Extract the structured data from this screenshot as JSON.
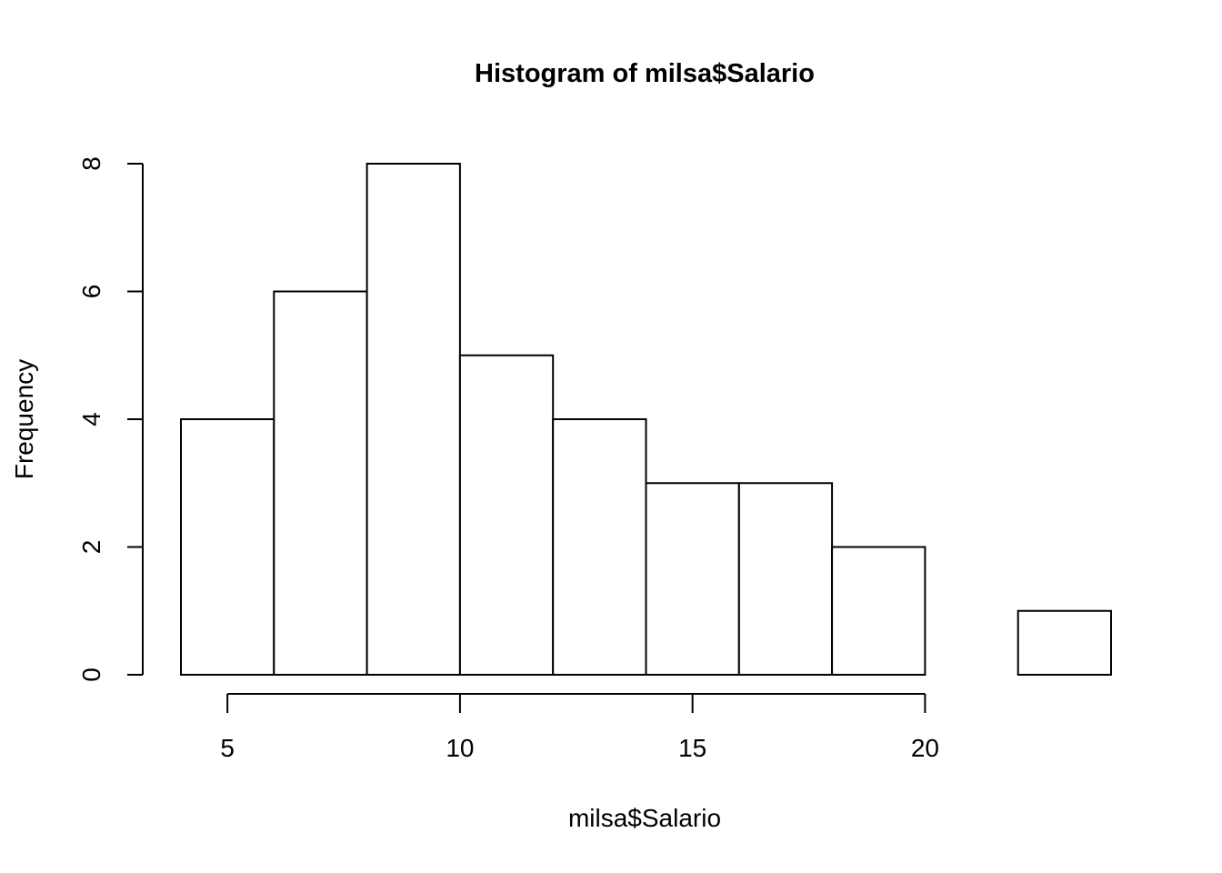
{
  "chart_data": {
    "type": "bar",
    "title": "Histogram of milsa$Salario",
    "xlabel": "milsa$Salario",
    "ylabel": "Frequency",
    "bin_edges": [
      4,
      6,
      8,
      10,
      12,
      14,
      16,
      18,
      20,
      22,
      24
    ],
    "counts": [
      4,
      6,
      8,
      5,
      4,
      3,
      3,
      2,
      0,
      1
    ],
    "xlim": [
      4,
      24
    ],
    "ylim": [
      0,
      8
    ],
    "x_ticks": [
      5,
      10,
      15,
      20
    ],
    "x_tick_labels": [
      "5",
      "10",
      "15",
      "20"
    ],
    "y_ticks": [
      0,
      2,
      4,
      6,
      8
    ],
    "y_tick_labels": [
      "0",
      "2",
      "4",
      "6",
      "8"
    ],
    "grid": false,
    "legend": "none",
    "bar_fill": "#ffffff",
    "bar_stroke": "#000000"
  }
}
